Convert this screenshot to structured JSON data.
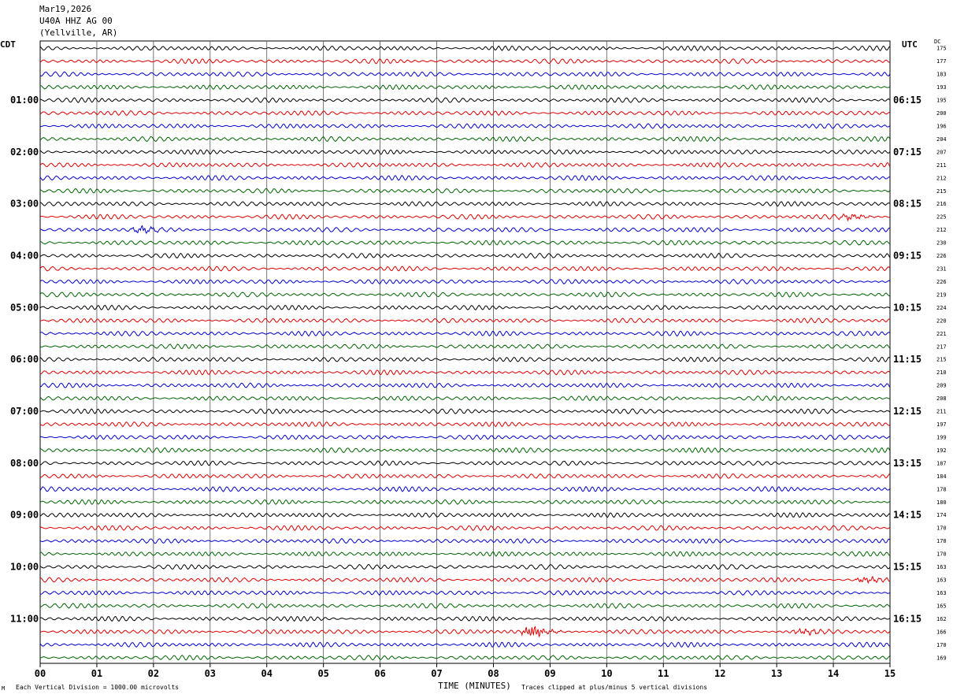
{
  "header": {
    "date": "Mar19,2026",
    "station": "U40A HHZ AG 00",
    "location": "(Yellville, AR)"
  },
  "left_tz": "CDT",
  "right_tz": "UTC",
  "dc_header": "DC",
  "chart_data": {
    "type": "line",
    "title": "Mar19,2026 U40A HHZ AG 00 (Yellville, AR)",
    "xlabel": "TIME (MINUTES)",
    "x_ticks": [
      "00",
      "01",
      "02",
      "03",
      "04",
      "05",
      "06",
      "07",
      "08",
      "09",
      "10",
      "11",
      "12",
      "13",
      "14",
      "15"
    ],
    "xlim": [
      0,
      15
    ],
    "rows_count": 48,
    "row_minutes": 15,
    "trace_colors": [
      "#000000",
      "#dd0000",
      "#0000cc",
      "#006400"
    ],
    "left_time_labels": [
      "01:00",
      "02:00",
      "03:00",
      "04:00",
      "05:00",
      "06:00",
      "07:00",
      "08:00",
      "09:00",
      "10:00",
      "11:00"
    ],
    "right_time_labels": [
      "06:15",
      "07:15",
      "08:15",
      "09:15",
      "10:15",
      "11:15",
      "12:15",
      "13:15",
      "14:15",
      "15:15",
      "16:15"
    ],
    "dc_offsets": [
      "175",
      "177",
      "183",
      "193",
      "195",
      "200",
      "196",
      "204",
      "207",
      "211",
      "212",
      "215",
      "216",
      "225",
      "212",
      "230",
      "226",
      "231",
      "226",
      "219",
      "224",
      "220",
      "221",
      "217",
      "215",
      "210",
      "209",
      "208",
      "211",
      "197",
      "199",
      "192",
      "187",
      "184",
      "178",
      "180",
      "174",
      "170",
      "170",
      "170",
      "163",
      "163",
      "163",
      "165",
      "162",
      "166",
      "170",
      "169"
    ],
    "events": [
      {
        "row": 45,
        "minute": 8.7,
        "label": "local event burst"
      },
      {
        "row": 45,
        "minute": 13.5
      },
      {
        "row": 41,
        "minute": 14.6
      },
      {
        "row": 13,
        "minute": 14.3
      },
      {
        "row": 14,
        "minute": 1.8
      }
    ],
    "grid": true
  },
  "footer": {
    "scale": "Each Vertical Division = 1000.00 microvolts",
    "clip": "Traces clipped at plus/minus 5 vertical divisions",
    "corner": "Μ"
  }
}
